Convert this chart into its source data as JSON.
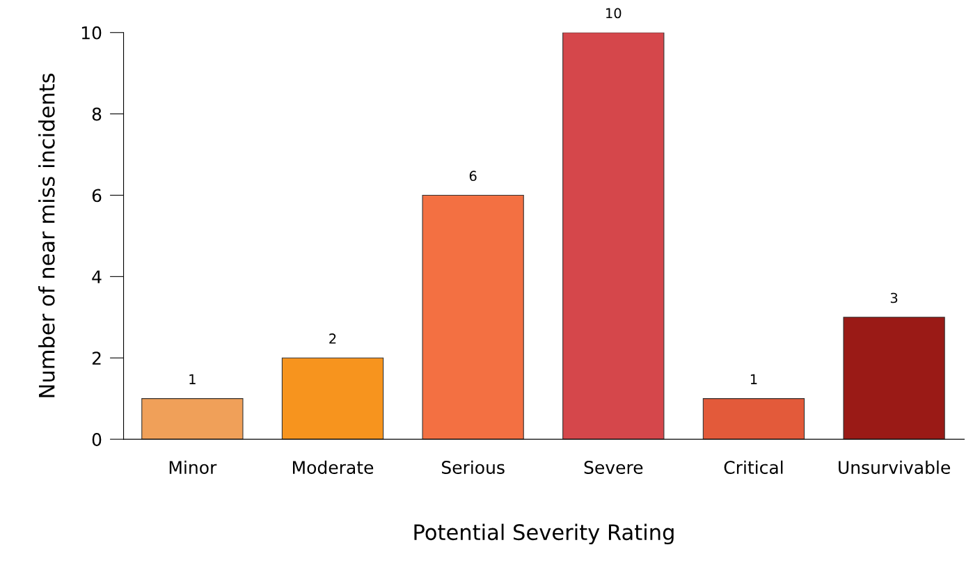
{
  "chart_data": {
    "type": "bar",
    "xlabel": "Potential Severity Rating",
    "ylabel": "Number of near miss incidents",
    "categories": [
      "Minor",
      "Moderate",
      "Serious",
      "Severe",
      "Critical",
      "Unsurvivable"
    ],
    "values": [
      1,
      2,
      6,
      10,
      1,
      3
    ],
    "colors": [
      "#f0a059",
      "#f7941e",
      "#f37042",
      "#d5474b",
      "#e35a3a",
      "#9a1a16"
    ],
    "ylim": [
      0,
      10
    ],
    "yticks": [
      0,
      2,
      4,
      6,
      8,
      10
    ],
    "grid": false,
    "legend": false,
    "data_labels": true
  }
}
